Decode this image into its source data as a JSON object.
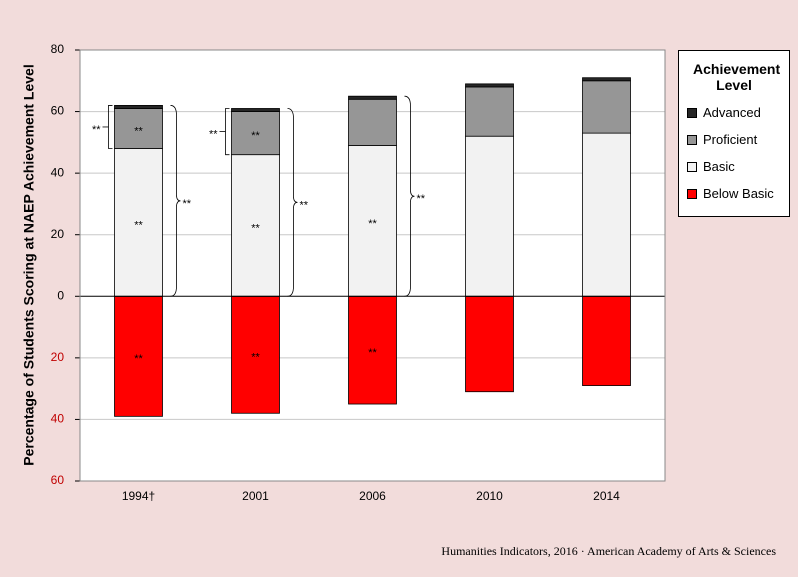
{
  "chart_data": {
    "type": "stacked_bar",
    "y_label": "Percentage of Students Scoring at NAEP Achievement Level",
    "categories": [
      "1994†",
      "2001",
      "2006",
      "2010",
      "2014"
    ],
    "series": [
      {
        "name": "Advanced",
        "color": "#262626",
        "values": [
          1,
          1,
          1,
          1,
          1
        ],
        "notes": [
          null,
          null,
          null,
          null,
          null
        ]
      },
      {
        "name": "Proficient",
        "color": "#969696",
        "values": [
          13,
          14,
          15,
          16,
          17
        ],
        "notes": [
          "**",
          "**",
          null,
          null,
          null
        ]
      },
      {
        "name": "Basic",
        "color": "#f2f2f2",
        "values": [
          48,
          46,
          49,
          52,
          53
        ],
        "notes": [
          "**",
          "**",
          "**",
          null,
          null
        ]
      },
      {
        "name": "Below Basic",
        "color": "#ff0000",
        "values": [
          -39,
          -38,
          -35,
          -31,
          -29
        ],
        "notes": [
          "**",
          "**",
          "**",
          null,
          null
        ]
      }
    ],
    "proficient_or_above_notes": [
      "**",
      "**",
      null,
      null,
      null
    ],
    "basic_or_above_notes": [
      "**",
      "**",
      "**",
      null,
      null
    ],
    "ylim": [
      -60,
      80
    ],
    "yticks": [
      {
        "value": -60,
        "label": "60"
      },
      {
        "value": -40,
        "label": "40"
      },
      {
        "value": -20,
        "label": "20"
      },
      0,
      20,
      40,
      60,
      80
    ],
    "grid": true,
    "legend_title": "Achievement Level",
    "legend_position": "right",
    "source": "Humanities Indicators, 2016 · American Academy of Arts & Sciences"
  }
}
